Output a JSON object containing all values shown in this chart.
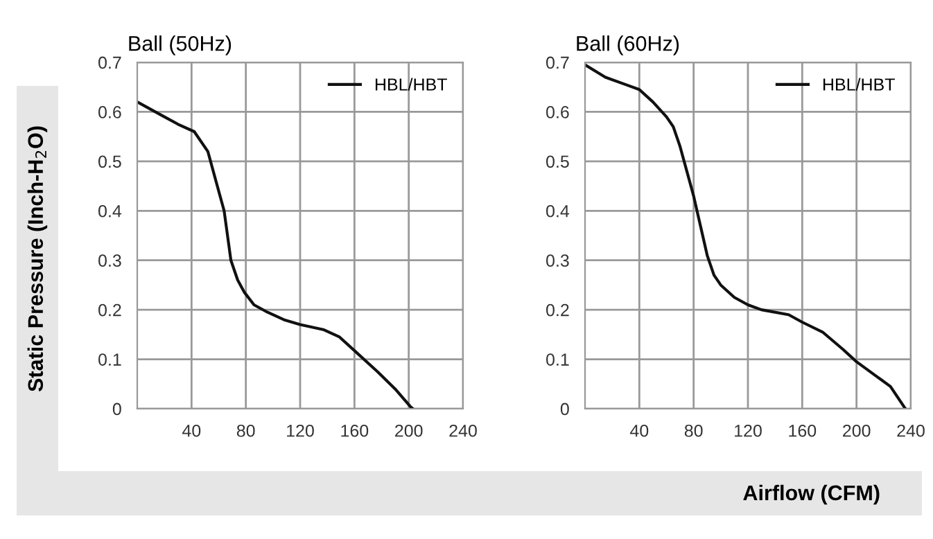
{
  "chart_data": [
    {
      "type": "line",
      "title": "Ball (50Hz)",
      "ylabel": "Static Pressure (Inch-H$_{2}$O)",
      "xlim": [
        0,
        240
      ],
      "xticks": [
        40,
        80,
        120,
        160,
        200,
        240
      ],
      "ylim": [
        0,
        0.7
      ],
      "yticks": [
        0,
        0.1,
        0.2,
        0.3,
        0.4,
        0.5,
        0.6,
        0.7
      ],
      "grid": true,
      "legend": "top right",
      "marker": "none",
      "line_style": "solid",
      "series": [
        {
          "name": "HBL/HBT",
          "color": "#111111",
          "x": [
            0,
            10,
            20,
            30,
            42,
            52,
            58,
            64,
            69,
            74,
            79,
            86,
            96,
            108,
            120,
            137,
            149,
            161,
            177,
            190,
            201,
            203
          ],
          "values": [
            0.62,
            0.605,
            0.59,
            0.575,
            0.56,
            0.52,
            0.46,
            0.4,
            0.3,
            0.26,
            0.235,
            0.21,
            0.195,
            0.18,
            0.17,
            0.16,
            0.145,
            0.115,
            0.075,
            0.04,
            0.005,
            0
          ]
        }
      ]
    },
    {
      "type": "line",
      "title": "Ball (60Hz)",
      "xlabel": "Airflow (CFM)",
      "xlim": [
        0,
        240
      ],
      "xticks": [
        40,
        80,
        120,
        160,
        200,
        240
      ],
      "ylim": [
        0,
        0.7
      ],
      "yticks": [
        0,
        0.1,
        0.2,
        0.3,
        0.4,
        0.5,
        0.6,
        0.7
      ],
      "grid": true,
      "legend": "top right",
      "marker": "none",
      "line_style": "solid",
      "series": [
        {
          "name": "HBL/HBT",
          "color": "#111111",
          "x": [
            0,
            15,
            30,
            40,
            50,
            60,
            65,
            70,
            75,
            80,
            85,
            90,
            95,
            100,
            110,
            120,
            130,
            150,
            160,
            175,
            190,
            200,
            215,
            225,
            236
          ],
          "values": [
            0.695,
            0.67,
            0.655,
            0.645,
            0.62,
            0.59,
            0.57,
            0.53,
            0.48,
            0.43,
            0.37,
            0.31,
            0.27,
            0.25,
            0.225,
            0.21,
            0.2,
            0.19,
            0.175,
            0.155,
            0.12,
            0.095,
            0.065,
            0.045,
            0
          ]
        }
      ]
    }
  ]
}
